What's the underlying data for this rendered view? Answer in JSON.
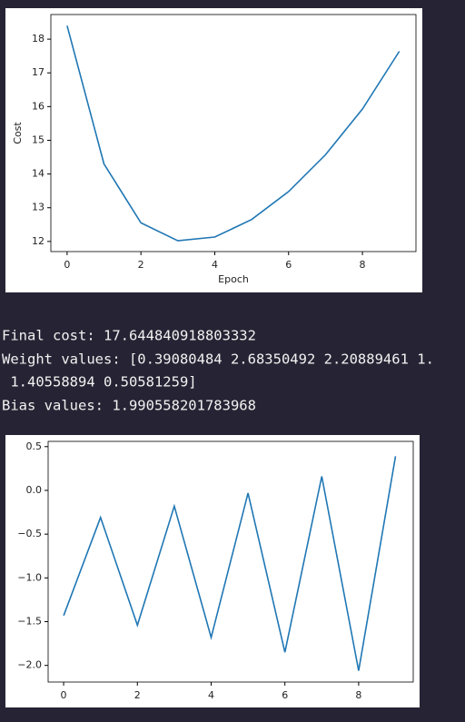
{
  "chart_data": [
    {
      "type": "line",
      "xlabel": "Epoch",
      "ylabel": "Cost",
      "x": [
        0,
        1,
        2,
        3,
        4,
        5,
        6,
        7,
        8,
        9
      ],
      "series": [
        {
          "color": "#1f77b4",
          "values": [
            18.4,
            14.3,
            12.55,
            12.02,
            12.13,
            12.65,
            13.48,
            14.57,
            15.93,
            17.64
          ]
        }
      ],
      "xlim": [
        -0.44,
        9.45
      ],
      "ylim": [
        11.7,
        18.73
      ],
      "xticks": [
        0,
        2,
        4,
        6,
        8
      ],
      "yticks": [
        12,
        13,
        14,
        15,
        16,
        17,
        18
      ]
    },
    {
      "type": "line",
      "x": [
        0,
        1,
        2,
        3,
        4,
        5,
        6,
        7,
        8,
        9
      ],
      "series": [
        {
          "color": "#1f77b4",
          "values": [
            -1.43,
            -0.31,
            -1.54,
            -0.18,
            -1.68,
            -0.03,
            -1.85,
            0.16,
            -2.06,
            0.39
          ]
        }
      ],
      "xlim": [
        -0.42,
        9.48
      ],
      "ylim": [
        -2.19,
        0.56
      ],
      "xticks": [
        0,
        2,
        4,
        6,
        8
      ],
      "yticks": [
        0.5,
        {
          "value": 0,
          "label": "0.0"
        },
        {
          "value": -0.5,
          "label": "−0.5"
        },
        {
          "value": -1,
          "label": "−1.0"
        },
        {
          "value": -1.5,
          "label": "−1.5"
        },
        {
          "value": -2,
          "label": "−2.0"
        }
      ]
    }
  ],
  "output": {
    "lines": [
      "Final cost: 17.644840918803332",
      "Weight values: [0.39080484 2.68350492 2.20889461 1.",
      " 1.40558894 0.50581259]",
      "Bias values: 1.990558201783968"
    ]
  }
}
